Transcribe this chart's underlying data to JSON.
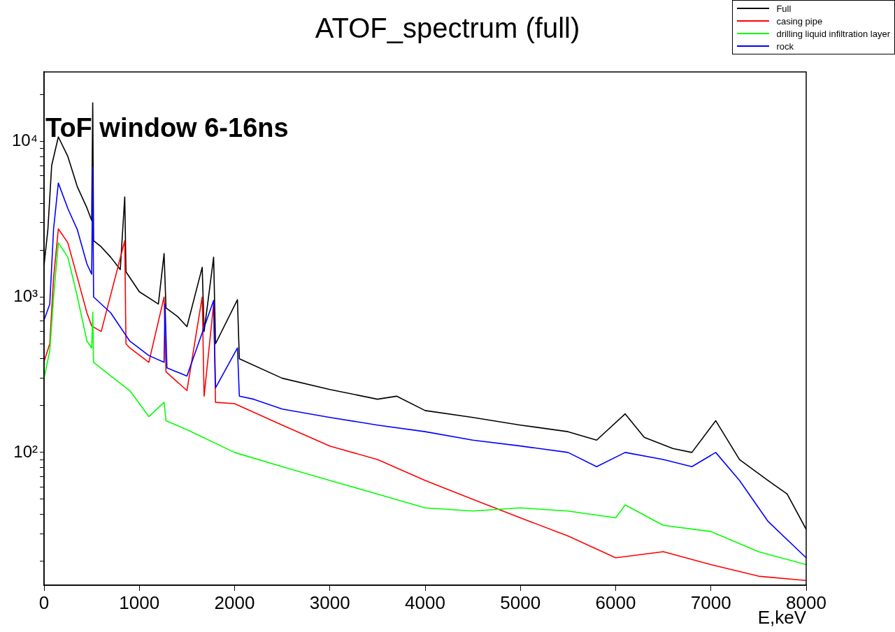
{
  "chart_data": {
    "type": "line",
    "title": "ATOF_spectrum (full)",
    "xlabel": "E,keV",
    "annotations": [
      "ToF window 6-16ns"
    ],
    "xlim": [
      0,
      8000
    ],
    "xticks": [
      0,
      1000,
      2000,
      3000,
      4000,
      5000,
      6000,
      7000,
      8000
    ],
    "log": "y",
    "ylim": [
      14,
      28000
    ],
    "yticks": [
      {
        "value": 20,
        "label": null
      },
      {
        "value": 30,
        "label": null
      },
      {
        "value": 40,
        "label": null
      },
      {
        "value": 50,
        "label": null
      },
      {
        "value": 60,
        "label": null
      },
      {
        "value": 70,
        "label": null
      },
      {
        "value": 80,
        "label": null
      },
      {
        "value": 90,
        "label": null
      },
      {
        "value": 100,
        "label": "10²"
      },
      {
        "value": 200,
        "label": null
      },
      {
        "value": 300,
        "label": null
      },
      {
        "value": 400,
        "label": null
      },
      {
        "value": 500,
        "label": null
      },
      {
        "value": 600,
        "label": null
      },
      {
        "value": 700,
        "label": null
      },
      {
        "value": 800,
        "label": null
      },
      {
        "value": 900,
        "label": null
      },
      {
        "value": 1000,
        "label": "10³"
      },
      {
        "value": 2000,
        "label": null
      },
      {
        "value": 3000,
        "label": null
      },
      {
        "value": 4000,
        "label": null
      },
      {
        "value": 5000,
        "label": null
      },
      {
        "value": 6000,
        "label": null
      },
      {
        "value": 7000,
        "label": null
      },
      {
        "value": 8000,
        "label": null
      },
      {
        "value": 9000,
        "label": null
      },
      {
        "value": 10000,
        "label": "10⁴"
      },
      {
        "value": 20000,
        "label": null
      }
    ],
    "grid": false,
    "legend": "top right",
    "marker": "none",
    "line_style": "solid",
    "series": [
      {
        "name": "Full",
        "color": "#000000",
        "x": [
          0,
          40,
          80,
          150,
          250,
          350,
          450,
          500,
          511,
          520,
          600,
          700,
          800,
          847,
          860,
          1000,
          1200,
          1260,
          1280,
          1400,
          1500,
          1660,
          1680,
          1780,
          1800,
          2030,
          2050,
          2500,
          3000,
          3500,
          3700,
          4000,
          4500,
          5000,
          5500,
          5800,
          6100,
          6300,
          6600,
          6800,
          7050,
          7300,
          7600,
          7800,
          8000
        ],
        "values": [
          1600,
          2700,
          7000,
          10700,
          8000,
          5100,
          3740,
          3100,
          17700,
          2300,
          2100,
          1800,
          1500,
          4400,
          1450,
          1080,
          900,
          1900,
          850,
          750,
          644,
          1550,
          600,
          1800,
          500,
          960,
          400,
          300,
          254,
          220,
          230,
          186,
          168,
          150,
          136,
          120,
          177,
          125,
          106,
          100,
          160,
          90,
          66,
          54,
          32
        ]
      },
      {
        "name": "casing pipe",
        "color": "#ff0000",
        "x": [
          0,
          60,
          100,
          150,
          250,
          350,
          450,
          500,
          600,
          847,
          860,
          900,
          1100,
          1260,
          1280,
          1500,
          1660,
          1680,
          1780,
          1800,
          2000,
          2500,
          3000,
          3500,
          4000,
          4500,
          5000,
          5500,
          6000,
          6500,
          7000,
          7500,
          8000
        ],
        "values": [
          384,
          500,
          1330,
          2740,
          2230,
          1330,
          790,
          650,
          600,
          2300,
          500,
          470,
          380,
          1000,
          330,
          250,
          1000,
          230,
          900,
          210,
          206,
          150,
          110,
          90,
          66,
          50,
          38,
          29,
          21,
          23,
          19,
          16,
          15
        ]
      },
      {
        "name": "drilling liquid infiltration layer",
        "color": "#00ff00",
        "x": [
          0,
          60,
          100,
          150,
          250,
          350,
          450,
          500,
          511,
          520,
          700,
          900,
          1100,
          1260,
          1280,
          1500,
          2000,
          2500,
          3000,
          3500,
          4000,
          4500,
          5000,
          5500,
          6000,
          6100,
          6500,
          7000,
          7500,
          8000
        ],
        "values": [
          300,
          450,
          1000,
          2230,
          1800,
          1000,
          520,
          470,
          800,
          380,
          310,
          250,
          170,
          210,
          160,
          140,
          100,
          81,
          66,
          54,
          44,
          42,
          44,
          42,
          38,
          46,
          34,
          31,
          23,
          19
        ]
      },
      {
        "name": "rock",
        "color": "#0000ff",
        "x": [
          0,
          60,
          100,
          150,
          250,
          350,
          450,
          500,
          511,
          520,
          700,
          900,
          1100,
          1260,
          1270,
          1290,
          1500,
          1780,
          1800,
          2030,
          2050,
          2200,
          2500,
          3000,
          3500,
          4000,
          4500,
          5000,
          5500,
          5800,
          6100,
          6500,
          6800,
          7050,
          7300,
          7600,
          8000
        ],
        "values": [
          710,
          900,
          2740,
          5400,
          3700,
          2700,
          1630,
          1400,
          6900,
          1000,
          790,
          520,
          420,
          380,
          900,
          350,
          310,
          950,
          260,
          470,
          230,
          220,
          190,
          168,
          150,
          136,
          120,
          110,
          100,
          81,
          100,
          90,
          81,
          100,
          66,
          36,
          21
        ]
      }
    ]
  }
}
